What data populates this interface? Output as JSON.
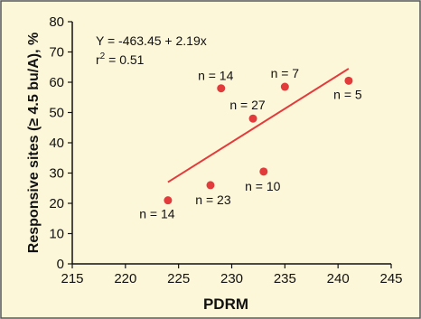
{
  "colors": {
    "background": "#fdf7da",
    "border": "#555555",
    "marker": "#e23b3b",
    "fit_line": "#e23b3b",
    "axis": "#111111"
  },
  "chart_data": {
    "type": "scatter",
    "xlabel": "PDRM",
    "ylabel": "Responsive sites (≥ 4.5 bu/A), %",
    "xlim": [
      215,
      245
    ],
    "ylim": [
      0,
      80
    ],
    "x_ticks": [
      215,
      220,
      225,
      230,
      235,
      240,
      245
    ],
    "y_ticks": [
      0,
      10,
      20,
      30,
      40,
      50,
      60,
      70,
      80
    ],
    "equation": "Y = -463.45 + 2.19x",
    "r2_text": "r",
    "r2_sup": "2",
    "r2_value": " = 0.51",
    "points": [
      {
        "x": 224,
        "y": 21,
        "label": "n = 14"
      },
      {
        "x": 228,
        "y": 26,
        "label": "n = 23"
      },
      {
        "x": 229,
        "y": 58,
        "label": "n = 14"
      },
      {
        "x": 232,
        "y": 48,
        "label": "n = 27"
      },
      {
        "x": 233,
        "y": 30.5,
        "label": "n = 10"
      },
      {
        "x": 235,
        "y": 58.5,
        "label": "n = 7"
      },
      {
        "x": 241,
        "y": 60.5,
        "label": "n = 5"
      }
    ],
    "fit_line": {
      "x": [
        224,
        241
      ],
      "y": [
        27,
        64.5
      ]
    }
  }
}
